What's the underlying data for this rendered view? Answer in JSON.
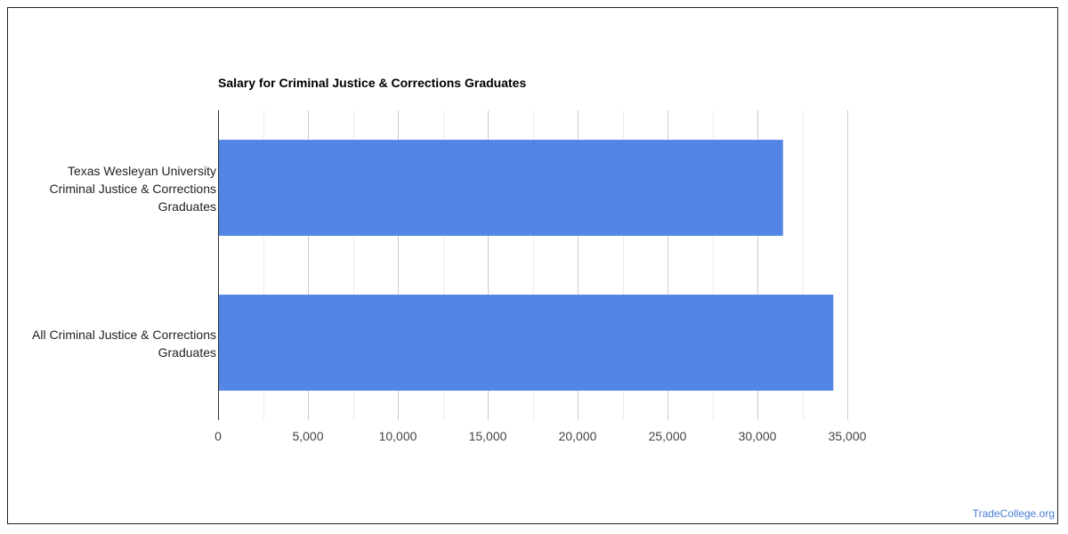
{
  "chart_data": {
    "type": "bar",
    "orientation": "horizontal",
    "title": "Salary for Criminal Justice & Corrections Graduates",
    "categories": [
      "Texas Wesleyan University\nCriminal Justice & Corrections\nGraduates",
      "All Criminal Justice & Corrections\nGraduates"
    ],
    "values": [
      31400,
      34200
    ],
    "xlim": [
      0,
      35000
    ],
    "xticks": [
      0,
      5000,
      10000,
      15000,
      20000,
      25000,
      30000,
      35000
    ],
    "xtick_labels": [
      "0",
      "5,000",
      "10,000",
      "15,000",
      "20,000",
      "25,000",
      "30,000",
      "35,000"
    ],
    "xlabel": "",
    "ylabel": "",
    "grid": true,
    "bar_color": "#5385e4"
  },
  "watermark": "TradeCollege.org"
}
